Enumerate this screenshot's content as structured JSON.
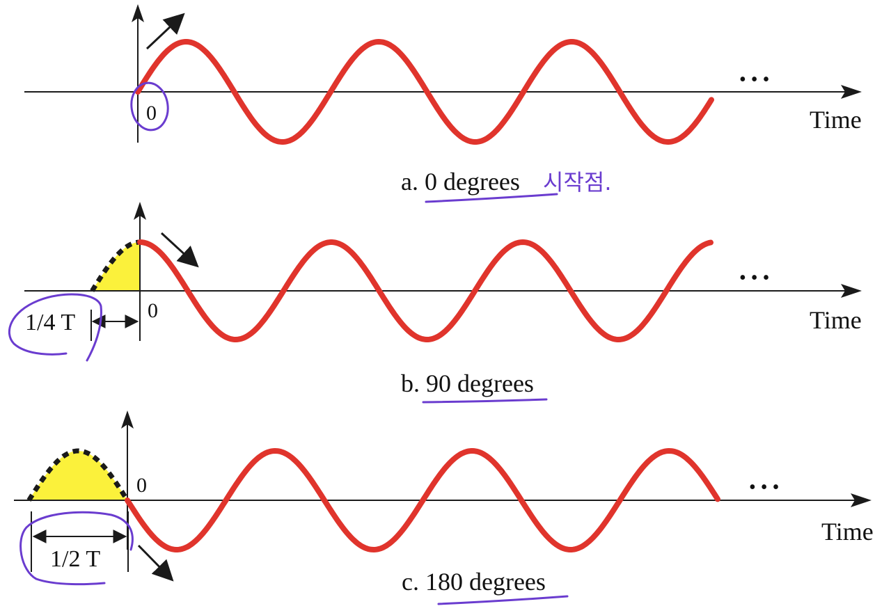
{
  "colors": {
    "wave": "#e0342c",
    "axis": "#1a1a1a",
    "highlight_fill": "#fbf13b",
    "annotation": "#6a3ccf"
  },
  "axis_label": "Time",
  "ellipsis": "• • •",
  "panels": [
    {
      "id": "a",
      "phase_degrees": 0,
      "caption": "a. 0 degrees",
      "origin_label": "0",
      "offset_label": ""
    },
    {
      "id": "b",
      "phase_degrees": 90,
      "caption": "b. 90 degrees",
      "origin_label": "0",
      "offset_label": "1/4 T"
    },
    {
      "id": "c",
      "phase_degrees": 180,
      "caption": "c. 180 degrees",
      "origin_label": "0",
      "offset_label": "1/2 T"
    }
  ],
  "handwritten_note": "시작점."
}
